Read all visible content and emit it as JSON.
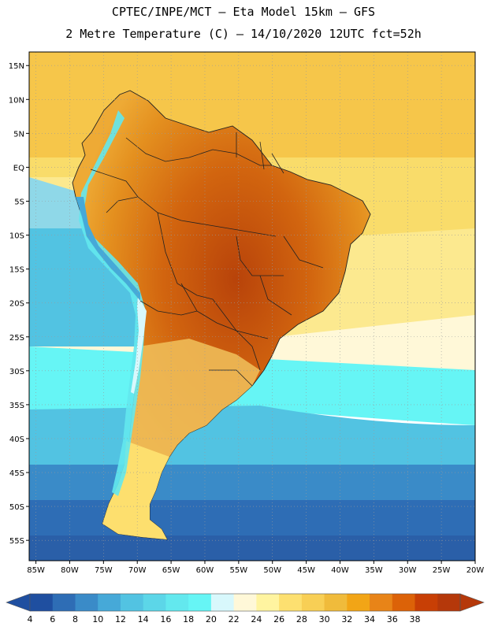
{
  "header": {
    "title_line1": "CPTEC/INPE/MCT –  Eta Model 15km – GFS",
    "title_line2": "2 Metre Temperature (C) – 14/10/2020 12UTC fct=52h"
  },
  "map": {
    "region": "South America",
    "projection": "lat-lon",
    "lon_range": [
      -86,
      -20
    ],
    "lat_range": [
      -58,
      17
    ],
    "lat_ticks": [
      {
        "v": 15,
        "label": "15N"
      },
      {
        "v": 10,
        "label": "10N"
      },
      {
        "v": 5,
        "label": "5N"
      },
      {
        "v": 0,
        "label": "EQ"
      },
      {
        "v": -5,
        "label": "5S"
      },
      {
        "v": -10,
        "label": "10S"
      },
      {
        "v": -15,
        "label": "15S"
      },
      {
        "v": -20,
        "label": "20S"
      },
      {
        "v": -25,
        "label": "25S"
      },
      {
        "v": -30,
        "label": "30S"
      },
      {
        "v": -35,
        "label": "35S"
      },
      {
        "v": -40,
        "label": "40S"
      },
      {
        "v": -45,
        "label": "45S"
      },
      {
        "v": -50,
        "label": "50S"
      },
      {
        "v": -55,
        "label": "55S"
      }
    ],
    "lon_ticks": [
      {
        "v": -85,
        "label": "85W"
      },
      {
        "v": -80,
        "label": "80W"
      },
      {
        "v": -75,
        "label": "75W"
      },
      {
        "v": -70,
        "label": "70W"
      },
      {
        "v": -65,
        "label": "65W"
      },
      {
        "v": -60,
        "label": "60W"
      },
      {
        "v": -55,
        "label": "55W"
      },
      {
        "v": -50,
        "label": "50W"
      },
      {
        "v": -45,
        "label": "45W"
      },
      {
        "v": -40,
        "label": "40W"
      },
      {
        "v": -35,
        "label": "35W"
      },
      {
        "v": -30,
        "label": "30W"
      },
      {
        "v": -25,
        "label": "25W"
      },
      {
        "v": -20,
        "label": "20W"
      }
    ],
    "colorbar": {
      "unit": "C",
      "levels": [
        "4",
        "6",
        "8",
        "10",
        "12",
        "14",
        "16",
        "18",
        "20",
        "22",
        "24",
        "26",
        "28",
        "30",
        "32",
        "34",
        "36",
        "38"
      ],
      "colors": [
        "#1f4fa0",
        "#2e6db5",
        "#3a8bc8",
        "#46a9d8",
        "#52c3e2",
        "#5cd6e8",
        "#63e8ee",
        "#66f5f5",
        "#d8f8fc",
        "#fff8d8",
        "#fff4a0",
        "#fde070",
        "#f8cf55",
        "#f0bb3b",
        "#f2a516",
        "#e88418",
        "#dc6208",
        "#c83f05",
        "#b5380a"
      ]
    }
  }
}
